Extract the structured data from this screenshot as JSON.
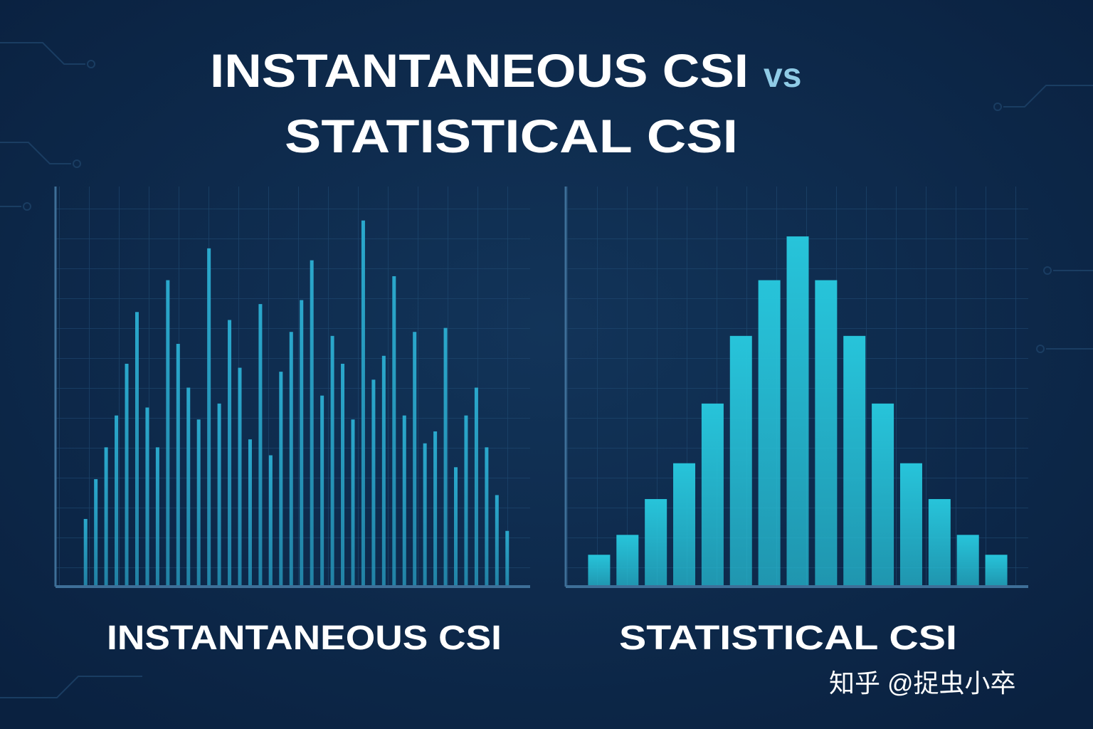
{
  "title": {
    "line1": "INSTANTANEOUS CSI",
    "vs": "vs",
    "line2": "STATISTICAL CSI"
  },
  "watermark": "知乎 @捉虫小卒",
  "chart_data": [
    {
      "type": "bar",
      "title": "INSTANTANEOUS CSI",
      "color": "#2aa8cc",
      "ylim": [
        0,
        100
      ],
      "values": [
        17,
        27,
        35,
        43,
        56,
        69,
        45,
        35,
        77,
        61,
        50,
        42,
        85,
        46,
        67,
        55,
        37,
        71,
        33,
        54,
        64,
        72,
        82,
        48,
        63,
        56,
        42,
        92,
        52,
        58,
        78,
        43,
        64,
        36,
        39,
        65,
        30,
        43,
        50,
        35,
        23,
        14
      ]
    },
    {
      "type": "bar",
      "title": "STATISTICAL CSI",
      "color": "#27c4da",
      "ylim": [
        0,
        100
      ],
      "values": [
        8,
        13,
        22,
        31,
        46,
        63,
        77,
        88,
        77,
        63,
        46,
        31,
        22,
        13,
        8
      ]
    }
  ]
}
